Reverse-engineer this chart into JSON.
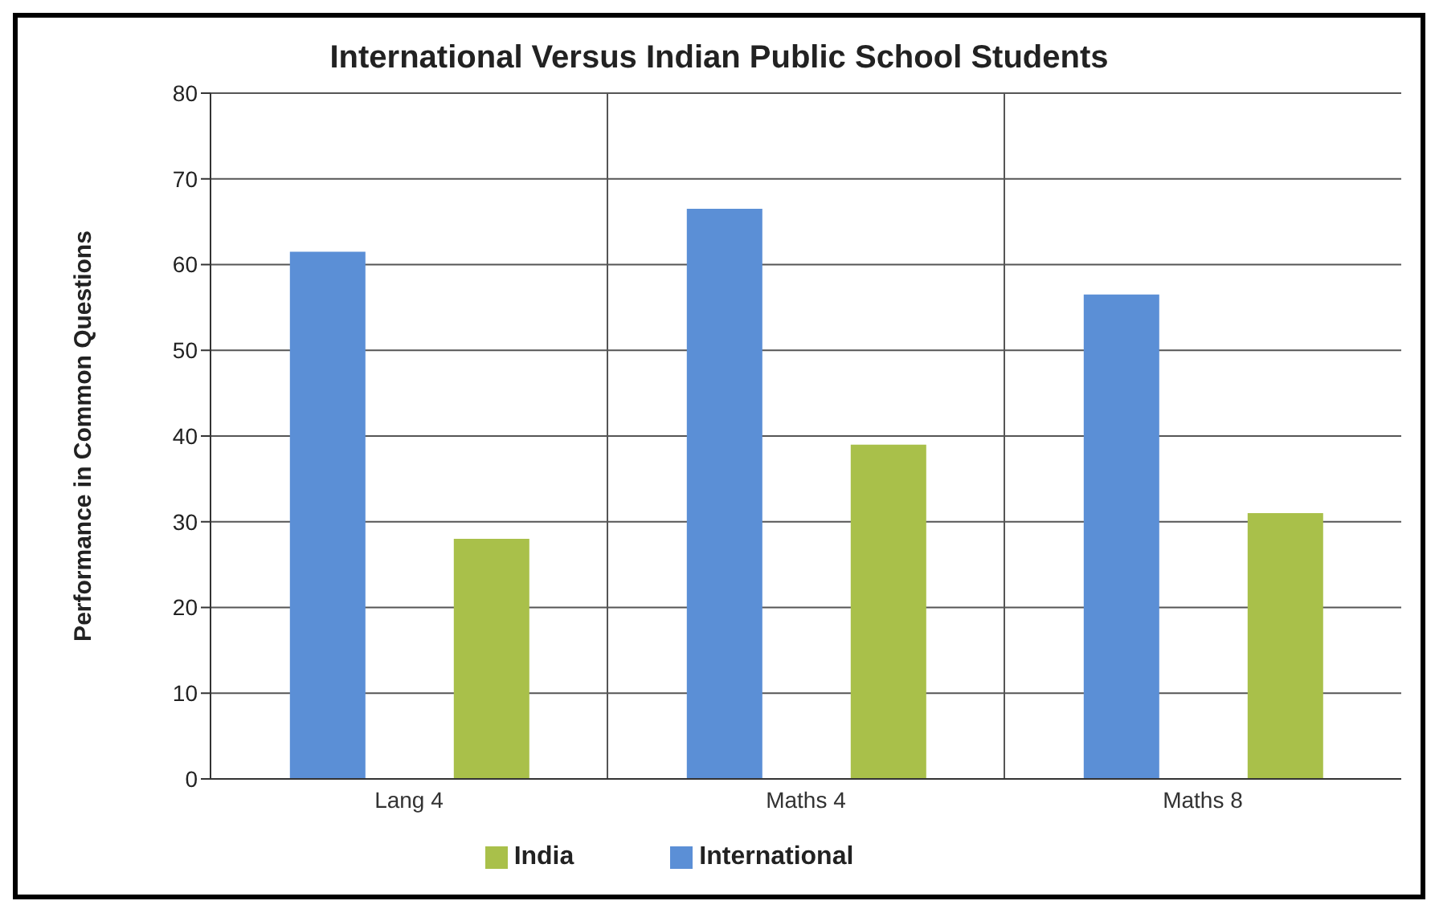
{
  "chart_data": {
    "type": "bar",
    "title": "International Versus Indian Public School Students",
    "ylabel": "Performance in Common Questions",
    "categories": [
      "Lang 4",
      "Maths 4",
      "Maths 8"
    ],
    "series": [
      {
        "name": "International",
        "color": "#5b8fd6",
        "values": [
          61.5,
          66.5,
          56.5
        ]
      },
      {
        "name": "India",
        "color": "#a9c04a",
        "values": [
          28,
          39,
          31
        ]
      }
    ],
    "ylim": [
      0,
      80
    ],
    "yticks": [
      0,
      10,
      20,
      30,
      40,
      50,
      60,
      70,
      80
    ],
    "grid": true,
    "legend": "bottom"
  }
}
